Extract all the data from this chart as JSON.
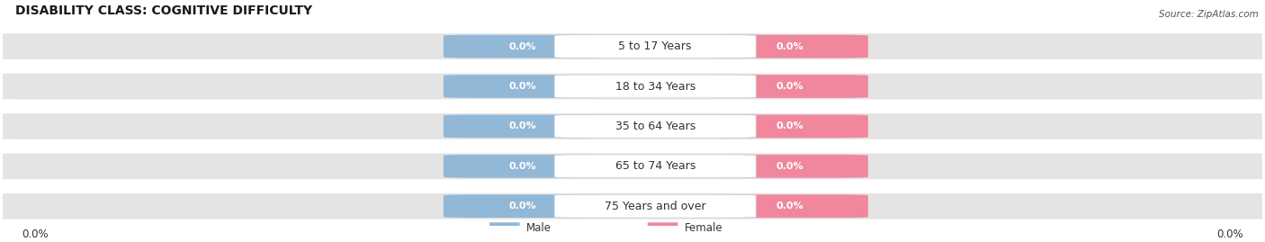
{
  "title": "DISABILITY CLASS: COGNITIVE DIFFICULTY",
  "source": "Source: ZipAtlas.com",
  "categories": [
    "5 to 17 Years",
    "18 to 34 Years",
    "35 to 64 Years",
    "65 to 74 Years",
    "75 Years and over"
  ],
  "male_values": [
    "0.0%",
    "0.0%",
    "0.0%",
    "0.0%",
    "0.0%"
  ],
  "female_values": [
    "0.0%",
    "0.0%",
    "0.0%",
    "0.0%",
    "0.0%"
  ],
  "male_color": "#92b8d8",
  "female_color": "#f0879c",
  "male_label": "Male",
  "female_label": "Female",
  "row_bg_color": "#e8e8e8",
  "label_bg_color": "#ffffff",
  "title_fontsize": 10,
  "label_fontsize": 9,
  "value_fontsize": 8,
  "bottom_left_value": "0.0%",
  "bottom_right_value": "0.0%",
  "background_color": "#ffffff"
}
